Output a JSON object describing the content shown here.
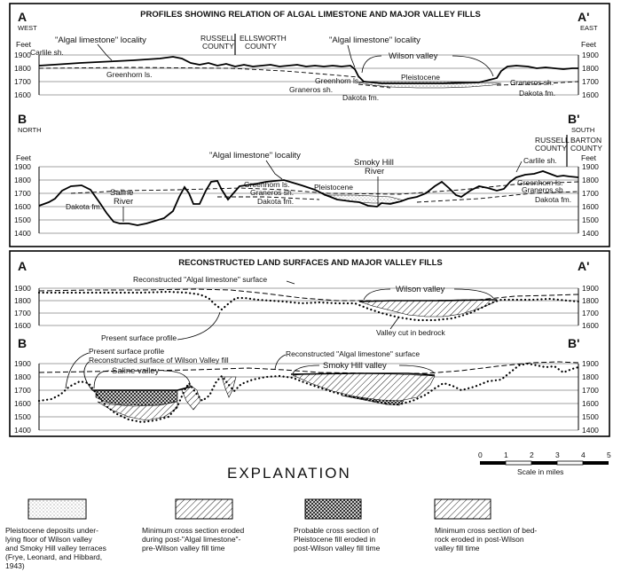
{
  "panel1": {
    "title": "PROFILES SHOWING RELATION OF ALGAL LIMESTONE AND MAJOR VALLEY FILLS",
    "a": {
      "left_letter": "A",
      "left_dir": "WEST",
      "right_letter": "A'",
      "right_dir": "EAST",
      "unit": "Feet",
      "ticks": [
        "1900",
        "1800",
        "1700",
        "1600"
      ],
      "labels": {
        "algal_left": "\"Algal limestone\" locality",
        "carlile": "Carlile sh.",
        "greenhorn": "Greenhorn ls.",
        "russell": "RUSSELL",
        "county1": "COUNTY",
        "ellsworth": "ELLSWORTH",
        "county2": "COUNTY",
        "algal_right": "\"Algal limestone\" locality",
        "wilson": "Wilson valley",
        "greenhorn2": "Greenhorn ls.",
        "pleistocene": "Pleistocene",
        "graneros": "Graneros sh.",
        "dakota": "Dakota fm.",
        "graneros_r": "Graneros sh.",
        "dakota_r": "Dakota fm."
      }
    },
    "b": {
      "left_letter": "B",
      "left_dir": "NORTH",
      "right_letter": "B'",
      "right_dir": "SOUTH",
      "unit": "Feet",
      "ticks": [
        "1900",
        "1800",
        "1700",
        "1600",
        "1500",
        "1400"
      ],
      "labels": {
        "algal": "\"Algal limestone\" locality",
        "saline1": "Saline",
        "saline2": "River",
        "dakota_l": "Dakota fm.",
        "greenhorn": "Greenhorn ls.",
        "graneros": "Graneros sh.",
        "dakota": "Dakota fm.",
        "pleistocene": "Pleistocene",
        "smoky1": "Smoky Hill",
        "smoky2": "River",
        "russell": "RUSSELL",
        "county1": "COUNTY",
        "barton": "BARTON",
        "county2": "COUNTY",
        "carlile": "Carlile sh.",
        "greenhorn_r": "Greenhorn ls.",
        "graneros_r": "Graneros sh.",
        "dakota_r": "Dakota fm."
      }
    }
  },
  "panel2": {
    "title": "RECONSTRUCTED LAND SURFACES AND MAJOR VALLEY FILLS",
    "a": {
      "left_letter": "A",
      "right_letter": "A'",
      "ticks": [
        "1900",
        "1800",
        "1700",
        "1600"
      ],
      "labels": {
        "recon": "Reconstructed \"Algal limestone\" surface",
        "wilson": "Wilson valley",
        "cut": "Valley cut in bedrock",
        "present": "Present surface profile"
      }
    },
    "b": {
      "left_letter": "B",
      "right_letter": "B'",
      "ticks": [
        "1900",
        "1800",
        "1700",
        "1600",
        "1500",
        "1400"
      ],
      "labels": {
        "recon_wilson": "Reconstructed surface of Wilson Valley fill",
        "recon_algal": "Reconstructed \"Algal limestone\" surface",
        "saline": "Saline valley",
        "smoky": "Smoky Hill valley"
      }
    }
  },
  "explanation": {
    "title": "EXPLANATION",
    "scale": {
      "ticks": [
        "0",
        "1",
        "2",
        "3",
        "4",
        "5"
      ],
      "label": "Scale in miles"
    },
    "legend": [
      {
        "lines": [
          "Pleistocene deposits under-",
          "lying floor of Wilson valley",
          "and Smoky Hill valley terraces",
          "(Frye, Leonard, and Hibbard,",
          "1943)"
        ]
      },
      {
        "lines": [
          "Minimum cross section eroded",
          "during post-\"Algal limestone\"-",
          "pre-Wilson valley fill time"
        ]
      },
      {
        "lines": [
          "Probable cross section of",
          "Pleistocene fill eroded in",
          "post-Wilson valley fill time"
        ]
      },
      {
        "lines": [
          "Minimum cross section of bed-",
          "rock eroded in post-Wilson",
          "valley fill time"
        ]
      }
    ]
  }
}
